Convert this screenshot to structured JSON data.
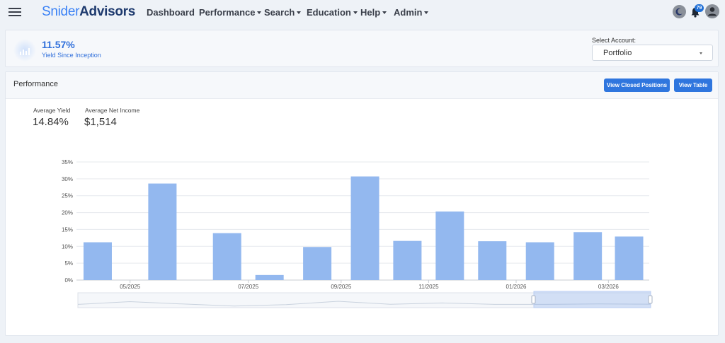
{
  "nav": {
    "brand_part1": "Snider",
    "brand_part2": "Advisors",
    "items": [
      {
        "label": "Dashboard",
        "dropdown": false
      },
      {
        "label": "Performance",
        "dropdown": true
      },
      {
        "label": "Search",
        "dropdown": true
      },
      {
        "label": "Education",
        "dropdown": true
      },
      {
        "label": "Help",
        "dropdown": true
      },
      {
        "label": "Admin",
        "dropdown": true
      }
    ],
    "notification_count": "79",
    "icons": [
      "menu-icon",
      "moon-icon",
      "bell-icon",
      "user-icon"
    ]
  },
  "summary": {
    "yield_value": "11.57%",
    "yield_label": "Yield Since Inception",
    "account_label": "Select Account:",
    "account_value": "Portfolio"
  },
  "performance": {
    "title": "Performance",
    "btn_closed": "View Closed Positions",
    "btn_table": "View Table",
    "avg_yield_label": "Average Yield",
    "avg_yield_value": "14.84%",
    "avg_income_label": "Average Net Income",
    "avg_income_value": "$1,514"
  },
  "colors": {
    "bar": "#93b8ef",
    "accent": "#2f76de",
    "brand_dark": "#1e3a6e",
    "brand_light": "#3b82f6"
  },
  "chart_data": {
    "type": "bar",
    "y_ticks": [
      "0%",
      "5%",
      "10%",
      "15%",
      "20%",
      "25%",
      "30%",
      "35%"
    ],
    "ylim": [
      0,
      35
    ],
    "x_ticks": [
      {
        "label": "05/2025",
        "at": 1
      },
      {
        "label": "07/2025",
        "at": 3
      },
      {
        "label": "09/2025",
        "at": 5
      },
      {
        "label": "11/2025",
        "at": 7
      },
      {
        "label": "01/2026",
        "at": 9
      },
      {
        "label": "03/2026",
        "at": 11
      }
    ],
    "values": [
      11.2,
      28.6,
      13.9,
      1.5,
      9.8,
      30.7,
      11.6,
      20.3,
      11.5,
      11.2,
      14.2,
      12.9
    ],
    "grid": true,
    "navigator": true
  }
}
